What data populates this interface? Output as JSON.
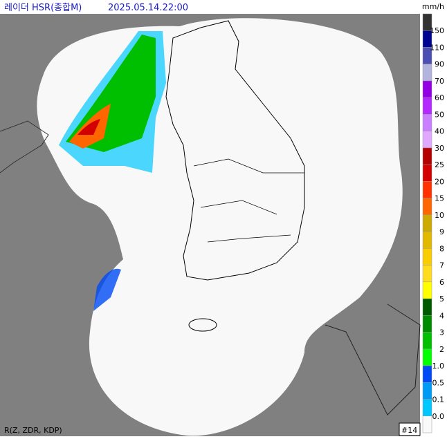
{
  "header": {
    "title": "레이더 HSR(종합M)",
    "time": "2025.05.14.22:00"
  },
  "legend": {
    "unit": "mm/h",
    "labels": [
      "150",
      "110",
      "90",
      "70",
      "60",
      "50",
      "40",
      "30",
      "25",
      "20",
      "15",
      "10",
      "9",
      "8",
      "7",
      "6",
      "5",
      "4",
      "3",
      "2",
      "1.0",
      "0.5",
      "0.1",
      "0.0"
    ],
    "colors": [
      "#333333",
      "#000390",
      "#4c4eb1",
      "#b3b4de",
      "#9300e4",
      "#b329ff",
      "#c97fff",
      "#e0a9ff",
      "#b40000",
      "#d20000",
      "#ff3200",
      "#ff6600",
      "#ccaa00",
      "#e0b900",
      "#f9cd00",
      "#ffdc1f",
      "#ffff00",
      "#005a00",
      "#008c00",
      "#00be00",
      "#00ff00",
      "#004af5",
      "#009bf5",
      "#00c8ff",
      "#fafafa"
    ]
  },
  "footer": {
    "method": "R(Z, ZDR, KDP)",
    "frame": "#14"
  }
}
